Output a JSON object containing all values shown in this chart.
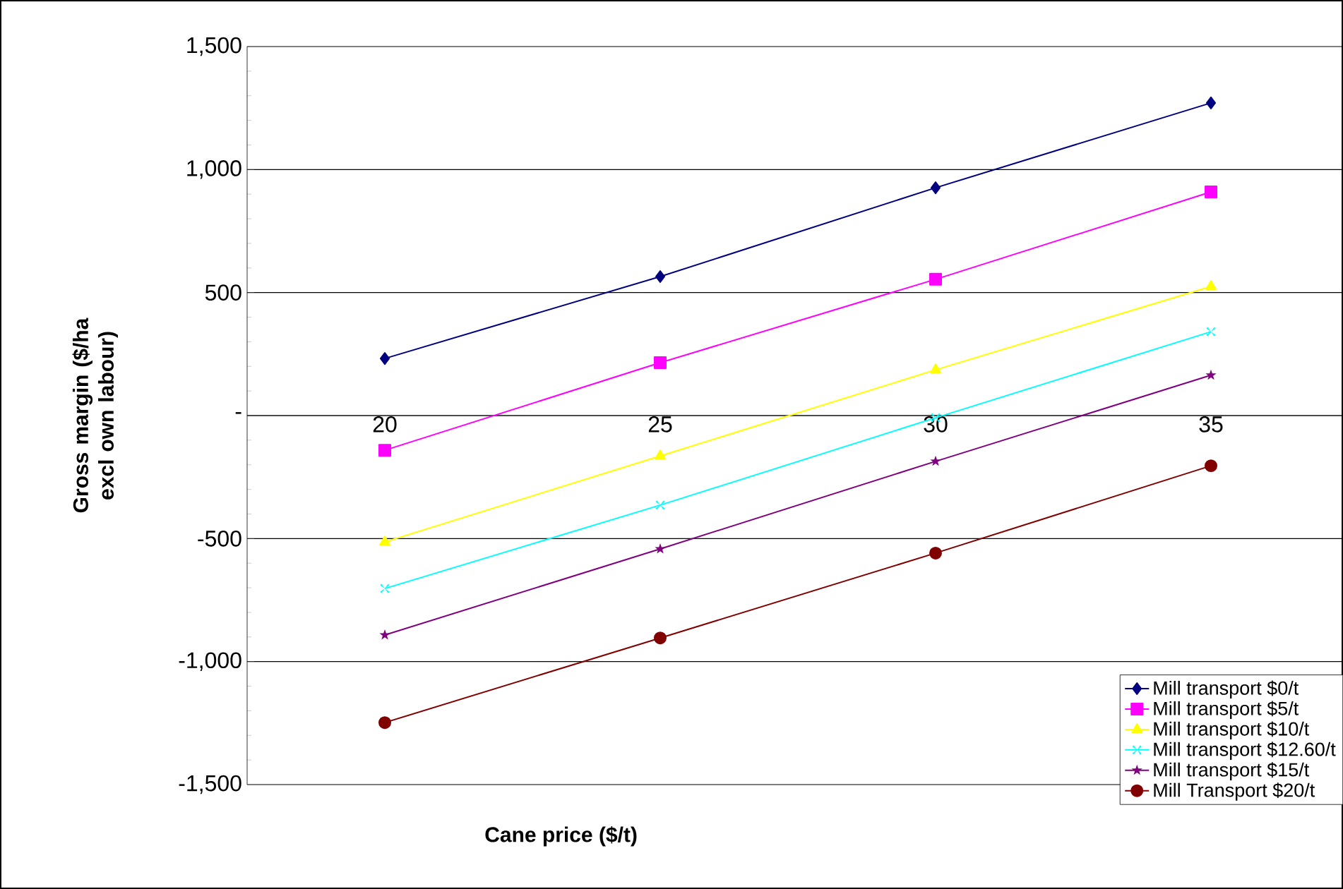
{
  "chart_data": {
    "type": "line",
    "xlabel": "Cane price ($/t)",
    "ylabel": "Gross margin ($/ha excl own labour)",
    "categories": [
      "20",
      "25",
      "30",
      "35"
    ],
    "series": [
      {
        "name": "Mill transport $0/t",
        "color": "#000080",
        "marker": "diamond",
        "values": [
          232,
          565,
          926,
          1271
        ]
      },
      {
        "name": "Mill transport $5/t",
        "color": "#ff00ff",
        "marker": "square",
        "values": [
          -141,
          215,
          554,
          909
        ]
      },
      {
        "name": "Mill transport $10/t",
        "color": "#ffff00",
        "marker": "triangle",
        "values": [
          -514,
          -164,
          186,
          525
        ]
      },
      {
        "name": "Mill transport $12.60/t",
        "color": "#00ffff",
        "marker": "cross",
        "values": [
          -703,
          -364,
          -9,
          341
        ]
      },
      {
        "name": "Mill transport $15/t",
        "color": "#800080",
        "marker": "star",
        "values": [
          -892,
          -542,
          -186,
          164
        ]
      },
      {
        "name": "Mill Transport $20/t",
        "color": "#800000",
        "marker": "circle",
        "values": [
          -1248,
          -904,
          -559,
          -204
        ]
      }
    ],
    "ylim": [
      -1500,
      1500
    ],
    "yticks": [
      {
        "value": -1500,
        "label": "-1,500"
      },
      {
        "value": -1000,
        "label": "-1,000"
      },
      -500,
      {
        "value": 0,
        "label": "-"
      },
      500,
      {
        "value": 1000,
        "label": "1,000"
      },
      {
        "value": 1500,
        "label": "1,500"
      }
    ],
    "grid": "y",
    "legend": "bottom right"
  }
}
